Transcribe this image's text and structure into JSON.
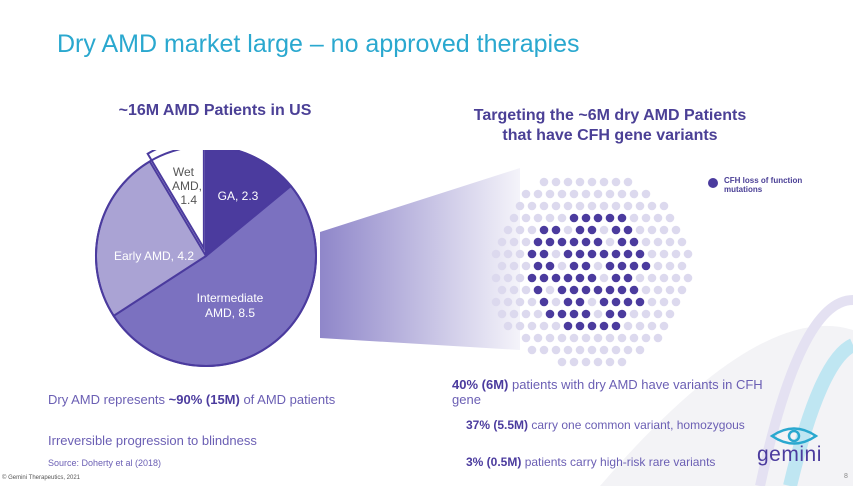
{
  "slide": {
    "title": "Dry AMD market large – no approved therapies",
    "page_number": "8",
    "copyright": "© Gemini Therapeutics, 2021"
  },
  "left": {
    "heading": "~16M AMD Patients in US",
    "p1_prefix": "Dry AMD represents ",
    "p1_bold": "~90% (15M)",
    "p1_suffix": " of AMD patients",
    "p2": "Irreversible progression to blindness",
    "source": "Source: Doherty et al (2018)"
  },
  "right": {
    "heading_line1": "Targeting the ~6M dry AMD Patients",
    "heading_line2": "that have CFH gene variants",
    "legend": "CFH loss of function mutations",
    "p1_bold": "40% (6M)",
    "p1_suffix": " patients with dry AMD have variants in CFH gene",
    "p2_bold": "37% (5.5M)",
    "p2_suffix": " carry one common variant, homozygous",
    "p3_bold": "3% (0.5M)",
    "p3_suffix": " patients carry high-risk rare variants"
  },
  "logo": {
    "text": "gemini"
  },
  "colors": {
    "title": "#2aa8cf",
    "heading": "#4b4096",
    "dark_purple": "#4b3b9e",
    "mid_purple": "#7b71c0",
    "light_purple": "#aaa3d4",
    "dot_light": "#dcd9ee",
    "teal": "#2aa8cf"
  },
  "chart_data": {
    "type": "pie",
    "title": "~16M AMD Patients in US",
    "slices": [
      {
        "label": "GA",
        "value": 2.3,
        "color": "#4b3b9e"
      },
      {
        "label": "Intermediate AMD",
        "value": 8.5,
        "color": "#7b71c0"
      },
      {
        "label": "Early AMD",
        "value": 4.2,
        "color": "#aaa3d4"
      },
      {
        "label": "Wet AMD",
        "value": 1.4,
        "color": "#ffffff"
      }
    ],
    "slice_labels": {
      "ga": "GA, 2.3",
      "intermediate_l1": "Intermediate",
      "intermediate_l2": "AMD, 8.5",
      "early": "Early AMD, 4.2",
      "wet_l1": "Wet",
      "wet_l2": "AMD,",
      "wet_l3": "1.4"
    }
  }
}
